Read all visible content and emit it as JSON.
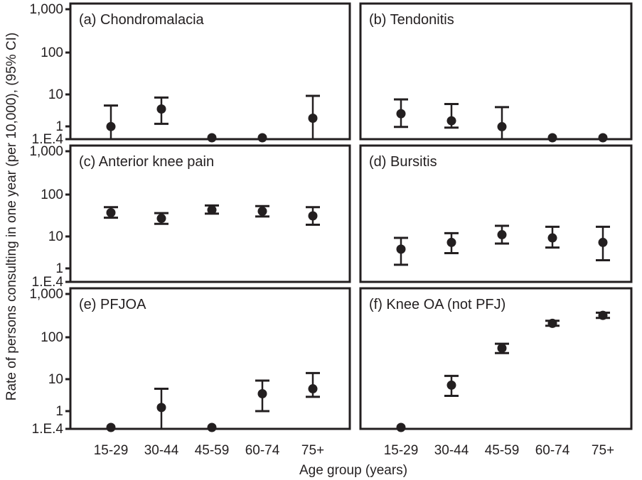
{
  "chart_data": {
    "type": "scatter",
    "ylabel": "Rate of persons consulting in one year (per 10,000), (95% CI)",
    "xlabel": "Age group (years)",
    "y_scale": "log",
    "y_ticks": [
      {
        "value": 1000,
        "label": "1,000"
      },
      {
        "value": 100,
        "label": "100"
      },
      {
        "value": 10,
        "label": "10"
      },
      {
        "value": 1,
        "label": "1"
      },
      {
        "value": 0.0001,
        "label": "1.E.4"
      }
    ],
    "categories": [
      "15-29",
      "30-44",
      "45-59",
      "60-74",
      "75+"
    ],
    "panels": [
      {
        "title": "(a) Chondromalacia",
        "points": [
          {
            "value": 0.9,
            "low": 0.0001,
            "high": 4.5
          },
          {
            "value": 3.5,
            "low": 1.2,
            "high": 8
          },
          {
            "value": 0.0001,
            "low": null,
            "high": null
          },
          {
            "value": 0.0001,
            "low": null,
            "high": null
          },
          {
            "value": 1.8,
            "low": 0.0001,
            "high": 9
          }
        ]
      },
      {
        "title": "(b) Tendonitis",
        "points": [
          {
            "value": 2.5,
            "low": 0.7,
            "high": 7
          },
          {
            "value": 1.5,
            "low": 0.4,
            "high": 5
          },
          {
            "value": 0.8,
            "low": 0.0001,
            "high": 4
          },
          {
            "value": 0.0001,
            "low": null,
            "high": null
          },
          {
            "value": 0.0001,
            "low": null,
            "high": null
          }
        ]
      },
      {
        "title": "(c) Anterior knee pain",
        "points": [
          {
            "value": 37,
            "low": 28,
            "high": 50
          },
          {
            "value": 27,
            "low": 20,
            "high": 36
          },
          {
            "value": 43,
            "low": 35,
            "high": 55
          },
          {
            "value": 40,
            "low": 30,
            "high": 53
          },
          {
            "value": 31,
            "low": 19,
            "high": 50
          }
        ]
      },
      {
        "title": "(d) Bursitis",
        "points": [
          {
            "value": 4,
            "low": 1.3,
            "high": 9
          },
          {
            "value": 6.5,
            "low": 3,
            "high": 12
          },
          {
            "value": 11,
            "low": 6,
            "high": 18
          },
          {
            "value": 9,
            "low": 4.5,
            "high": 17
          },
          {
            "value": 6.5,
            "low": 1.8,
            "high": 17
          }
        ]
      },
      {
        "title": "(e) PFJOA",
        "points": [
          {
            "value": 0.0001,
            "low": null,
            "high": null
          },
          {
            "value": 1.3,
            "low": 0.0001,
            "high": 5
          },
          {
            "value": 0.0001,
            "low": null,
            "high": null
          },
          {
            "value": 3.5,
            "low": 1,
            "high": 9
          },
          {
            "value": 5,
            "low": 2.8,
            "high": 14
          }
        ]
      },
      {
        "title": "(f) Knee OA (not PFJ)",
        "points": [
          {
            "value": 0.0001,
            "low": null,
            "high": null
          },
          {
            "value": 6.5,
            "low": 3,
            "high": 12
          },
          {
            "value": 55,
            "low": 42,
            "high": 70
          },
          {
            "value": 210,
            "low": 185,
            "high": 240
          },
          {
            "value": 320,
            "low": 280,
            "high": 370
          }
        ]
      }
    ]
  }
}
